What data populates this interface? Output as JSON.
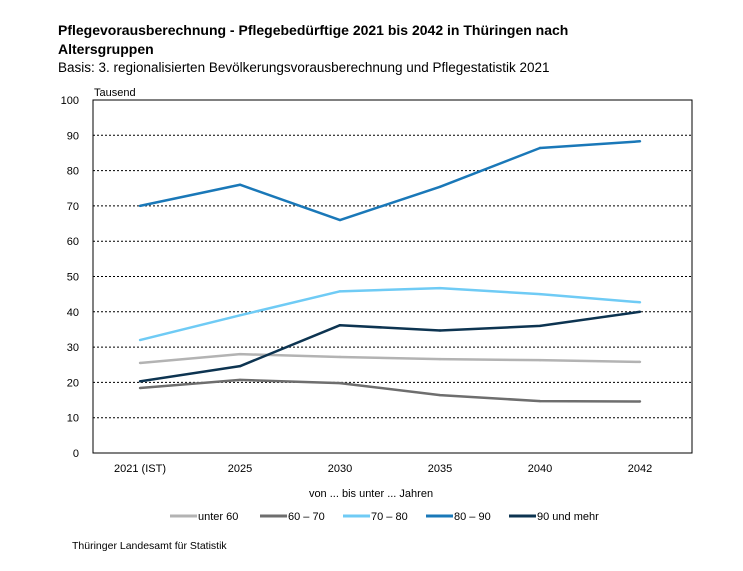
{
  "chart_data": {
    "type": "line",
    "title": "Pflegevorausberechnung - Pflegebedürftige 2021 bis 2042 in Thüringen  nach Altersgruppen",
    "subtitle": "Basis: 3. regionalisierten Bevölkerungsvorausberechnung und Pflegestatistik 2021",
    "ylabel": "Tausend",
    "xlabel": "von ... bis unter ... Jahren",
    "categories": [
      "2021 (IST)",
      "2025",
      "2030",
      "2035",
      "2040",
      "2042"
    ],
    "ylim": [
      0,
      100
    ],
    "yticks": [
      0,
      10,
      20,
      30,
      40,
      50,
      60,
      70,
      80,
      90,
      100
    ],
    "grid": "horizontal dotted",
    "legend": "bottom",
    "series": [
      {
        "name": "unter 60",
        "color": "#b3b3b3",
        "values": [
          25.5,
          28.0,
          27.2,
          26.6,
          26.3,
          25.8
        ]
      },
      {
        "name": "60 – 70",
        "color": "#6e6e6e",
        "values": [
          18.4,
          20.7,
          19.8,
          16.4,
          14.7,
          14.6
        ]
      },
      {
        "name": "70 – 80",
        "color": "#6fcbf5",
        "values": [
          32.0,
          39.0,
          45.8,
          46.7,
          45.0,
          42.7
        ]
      },
      {
        "name": "80 – 90",
        "color": "#1a78b8",
        "values": [
          70.0,
          76.0,
          66.0,
          75.4,
          86.4,
          88.3
        ]
      },
      {
        "name": "90 und mehr",
        "color": "#0d3451",
        "values": [
          20.3,
          24.6,
          36.2,
          34.7,
          36.0,
          40.0
        ]
      }
    ]
  },
  "source": "Thüringer Landesamt für Statistik"
}
